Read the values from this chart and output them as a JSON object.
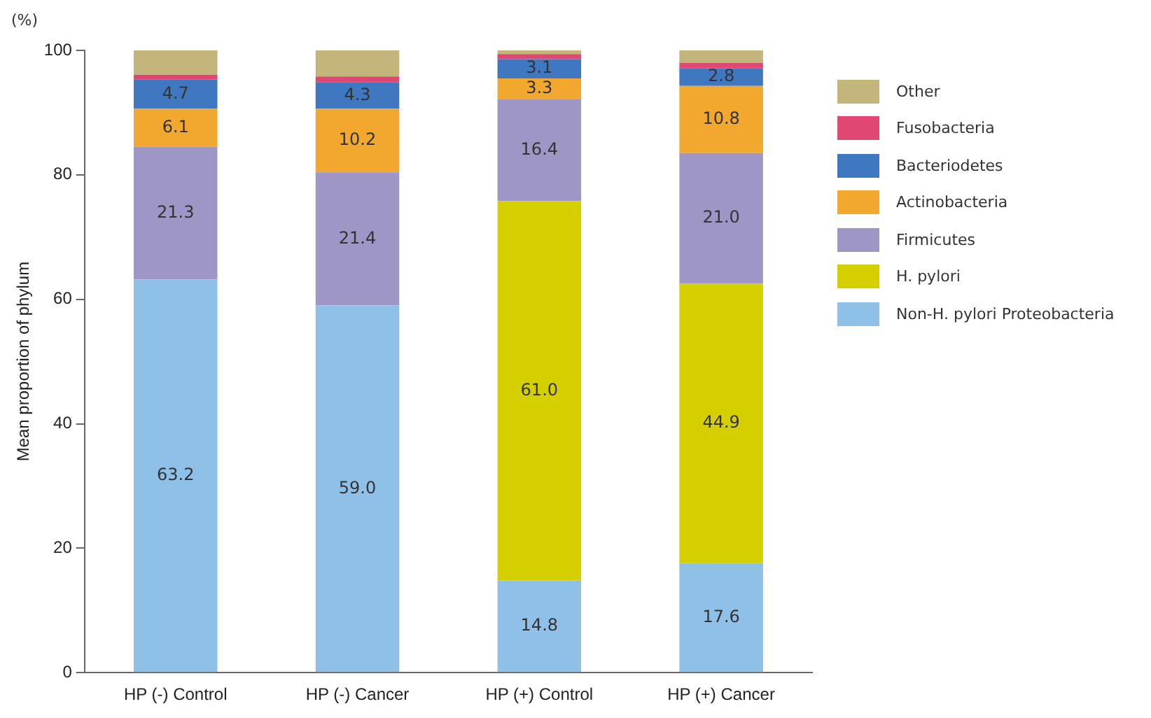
{
  "chart_data": {
    "type": "bar",
    "stacked": true,
    "ylabel": "Mean proportion of phylum",
    "annotations": [
      "(%)"
    ],
    "categories": [
      "HP (-) Control",
      "HP (-) Cancer",
      "HP (+) Control",
      "HP (+) Cancer"
    ],
    "ylim": [
      0,
      100
    ],
    "yticks": [
      0,
      20,
      40,
      60,
      80,
      100
    ],
    "grid": false,
    "legend": "right",
    "series": [
      {
        "name": "Non-H. pylori Proteobacteria",
        "color": "#8ec0e8",
        "values": [
          63.2,
          59.0,
          14.8,
          17.6
        ],
        "value_labels": [
          "63.2",
          "59.0",
          "14.8",
          "17.6"
        ]
      },
      {
        "name": "H. pylori",
        "color": "#d6cf00",
        "values": [
          0,
          0,
          61.0,
          44.9
        ],
        "value_labels": [
          null,
          null,
          "61.0",
          "44.9"
        ]
      },
      {
        "name": "Firmicutes",
        "color": "#9e97c6",
        "values": [
          21.3,
          21.4,
          16.4,
          21.0
        ],
        "value_labels": [
          "21.3",
          "21.4",
          "16.4",
          "21.0"
        ]
      },
      {
        "name": "Actinobacteria",
        "color": "#f2a72f",
        "values": [
          6.1,
          10.2,
          3.3,
          10.8
        ],
        "value_labels": [
          "6.1",
          "10.2",
          "3.3",
          "10.8"
        ]
      },
      {
        "name": "Bacteriodetes",
        "color": "#3f78c0",
        "values": [
          4.7,
          4.3,
          3.1,
          2.8
        ],
        "value_labels": [
          "4.7",
          "4.3",
          "3.1",
          "2.8"
        ]
      },
      {
        "name": "Fusobacteria",
        "color": "#e04873",
        "values": [
          0.8,
          0.9,
          0.8,
          0.9
        ]
      },
      {
        "name": "Other",
        "color": "#c4b57a",
        "values": [
          3.9,
          4.2,
          0.6,
          2.0
        ]
      }
    ]
  }
}
